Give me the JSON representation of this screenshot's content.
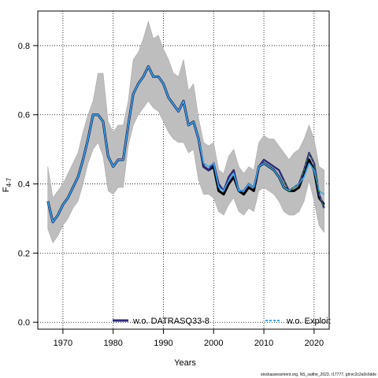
{
  "chart_data": {
    "type": "line",
    "xlabel": "Years",
    "ylabel_main": "F",
    "ylabel_sub": "4-7",
    "xlim": [
      1965,
      2023
    ],
    "ylim": [
      -0.02,
      0.9
    ],
    "x_ticks": [
      1970,
      1980,
      1990,
      2000,
      2010,
      2020
    ],
    "y_ticks": [
      0.0,
      0.2,
      0.4,
      0.6,
      0.8
    ],
    "y_tick_labels": [
      "0.0",
      "0.2",
      "0.4",
      "0.6",
      "0.8"
    ],
    "grid": true,
    "legend_position": "bottom",
    "colors": {
      "band": "#bebebe",
      "band_edge": "#a8a8a8",
      "base": "#000000",
      "datras": "#2b2a82",
      "exploit": "#33a8ee"
    },
    "years": [
      1967,
      1968,
      1969,
      1970,
      1971,
      1972,
      1973,
      1974,
      1975,
      1976,
      1977,
      1978,
      1979,
      1980,
      1981,
      1982,
      1983,
      1984,
      1985,
      1986,
      1987,
      1988,
      1989,
      1990,
      1991,
      1992,
      1993,
      1994,
      1995,
      1996,
      1997,
      1998,
      1999,
      2000,
      2001,
      2002,
      2003,
      2004,
      2005,
      2006,
      2007,
      2008,
      2009,
      2010,
      2011,
      2012,
      2013,
      2014,
      2015,
      2016,
      2017,
      2018,
      2019,
      2020,
      2021,
      2022
    ],
    "band_upper": [
      0.45,
      0.36,
      0.38,
      0.4,
      0.43,
      0.46,
      0.49,
      0.55,
      0.6,
      0.64,
      0.72,
      0.72,
      0.58,
      0.55,
      0.57,
      0.57,
      0.64,
      0.76,
      0.78,
      0.82,
      0.87,
      0.82,
      0.83,
      0.79,
      0.76,
      0.72,
      0.71,
      0.76,
      0.67,
      0.69,
      0.59,
      0.52,
      0.51,
      0.52,
      0.44,
      0.43,
      0.48,
      0.5,
      0.45,
      0.43,
      0.45,
      0.44,
      0.52,
      0.54,
      0.53,
      0.53,
      0.51,
      0.49,
      0.47,
      0.49,
      0.5,
      0.53,
      0.57,
      0.53,
      0.45,
      0.44
    ],
    "band_lower": [
      0.27,
      0.23,
      0.25,
      0.28,
      0.3,
      0.33,
      0.35,
      0.4,
      0.46,
      0.5,
      0.52,
      0.48,
      0.38,
      0.37,
      0.39,
      0.39,
      0.51,
      0.57,
      0.6,
      0.62,
      0.64,
      0.62,
      0.61,
      0.58,
      0.55,
      0.53,
      0.52,
      0.52,
      0.49,
      0.5,
      0.41,
      0.37,
      0.37,
      0.36,
      0.32,
      0.31,
      0.34,
      0.36,
      0.32,
      0.31,
      0.33,
      0.32,
      0.38,
      0.39,
      0.38,
      0.37,
      0.35,
      0.32,
      0.31,
      0.31,
      0.32,
      0.35,
      0.41,
      0.35,
      0.28,
      0.26
    ],
    "series": [
      {
        "name": "",
        "values": [
          0.35,
          0.29,
          0.31,
          0.34,
          0.36,
          0.39,
          0.42,
          0.47,
          0.53,
          0.6,
          0.6,
          0.58,
          0.48,
          0.45,
          0.47,
          0.47,
          0.57,
          0.66,
          0.69,
          0.71,
          0.74,
          0.71,
          0.71,
          0.69,
          0.65,
          0.63,
          0.61,
          0.64,
          0.57,
          0.58,
          0.53,
          0.45,
          0.44,
          0.45,
          0.38,
          0.37,
          0.4,
          0.42,
          0.38,
          0.37,
          0.39,
          0.38,
          0.45,
          0.46,
          0.45,
          0.44,
          0.42,
          0.39,
          0.38,
          0.38,
          0.39,
          0.43,
          0.47,
          0.44,
          0.36,
          0.34
        ]
      },
      {
        "name": "w.o. DATRASQ33-8",
        "values": [
          0.35,
          0.29,
          0.31,
          0.34,
          0.36,
          0.39,
          0.42,
          0.47,
          0.53,
          0.6,
          0.6,
          0.58,
          0.48,
          0.45,
          0.47,
          0.47,
          0.57,
          0.66,
          0.69,
          0.71,
          0.74,
          0.71,
          0.71,
          0.69,
          0.65,
          0.63,
          0.61,
          0.64,
          0.57,
          0.58,
          0.53,
          0.45,
          0.44,
          0.46,
          0.4,
          0.38,
          0.42,
          0.44,
          0.38,
          0.38,
          0.4,
          0.39,
          0.45,
          0.47,
          0.46,
          0.45,
          0.44,
          0.41,
          0.38,
          0.39,
          0.4,
          0.44,
          0.49,
          0.46,
          0.37,
          0.33
        ]
      },
      {
        "name": "w.o. Exploit",
        "values": [
          0.35,
          0.29,
          0.31,
          0.34,
          0.36,
          0.39,
          0.42,
          0.47,
          0.53,
          0.6,
          0.6,
          0.58,
          0.48,
          0.45,
          0.47,
          0.47,
          0.57,
          0.66,
          0.69,
          0.71,
          0.74,
          0.71,
          0.71,
          0.69,
          0.65,
          0.63,
          0.61,
          0.64,
          0.57,
          0.58,
          0.53,
          0.46,
          0.45,
          0.46,
          0.39,
          0.38,
          0.41,
          0.43,
          0.38,
          0.38,
          0.4,
          0.39,
          0.45,
          0.46,
          0.45,
          0.44,
          0.42,
          0.39,
          0.38,
          0.39,
          0.4,
          0.42,
          0.46,
          0.44,
          0.38,
          0.37
        ]
      }
    ],
    "footnote": "stockassessment.org, NS_saithe_2023, r17777, git:ec2c2a0c6dde"
  }
}
